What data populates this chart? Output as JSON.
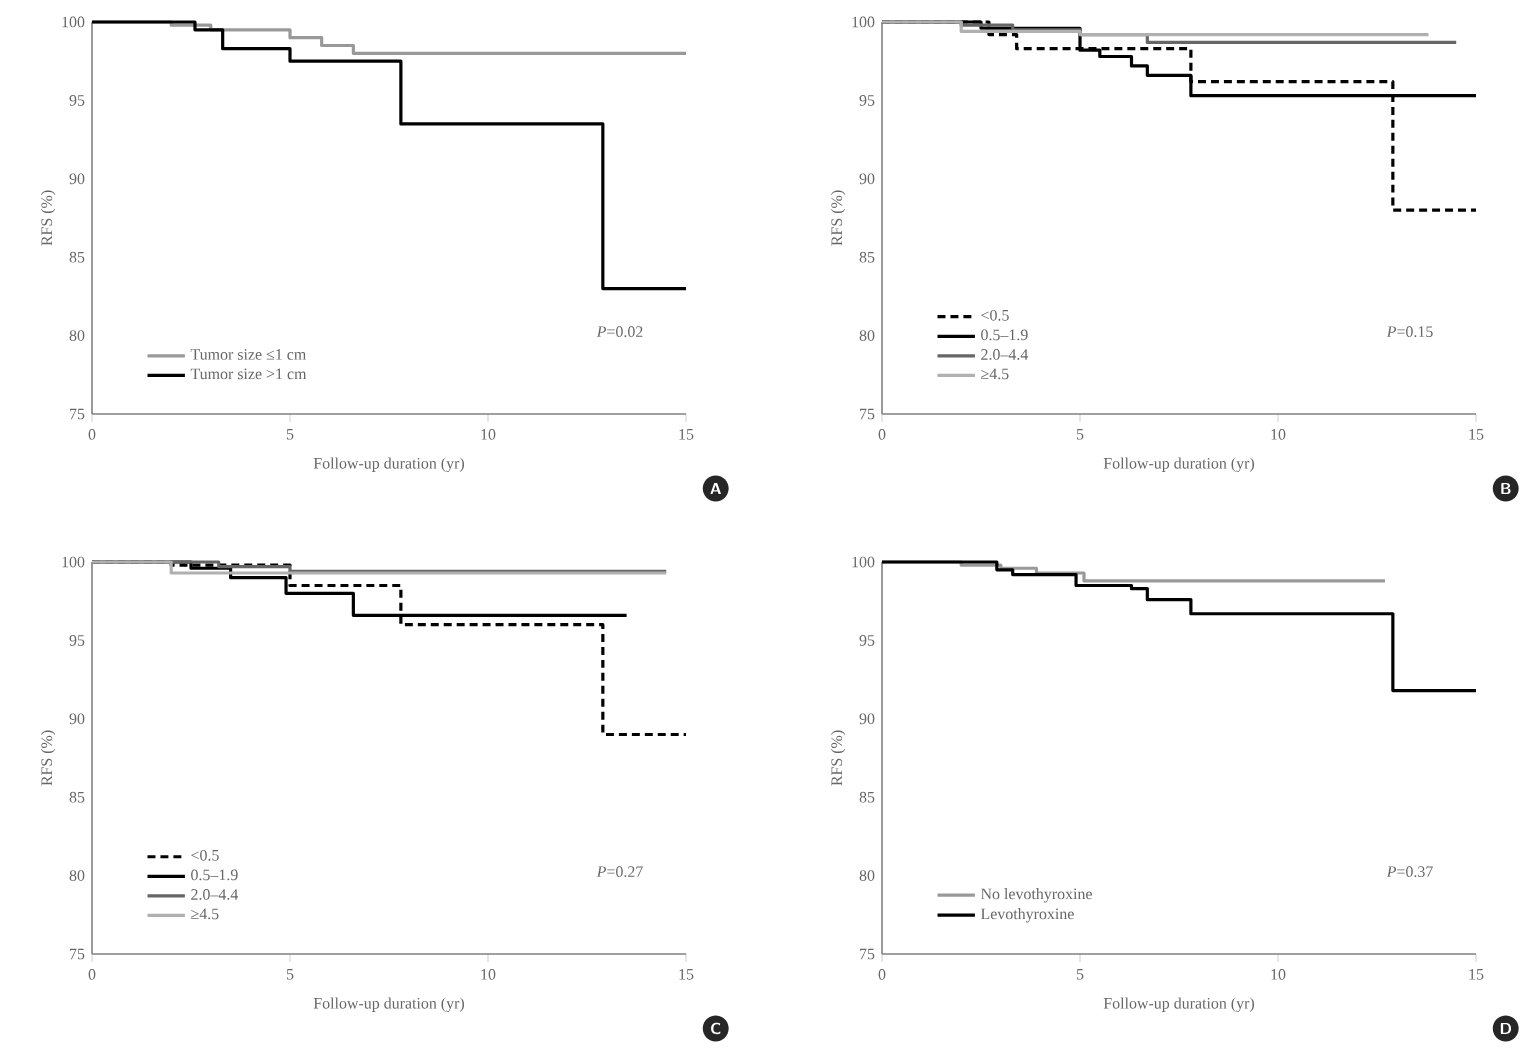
{
  "chart_data": [
    {
      "type": "step",
      "xlabel": "Follow-up duration (yr)",
      "ylabel": "RFS (%)",
      "xlim": [
        0,
        15
      ],
      "xticks": [
        0,
        5,
        10,
        15
      ],
      "ylim": [
        75,
        100
      ],
      "yticks": [
        75,
        80,
        85,
        90,
        95,
        100
      ],
      "legend": "bottom left",
      "annotations": [
        "*P*=0.02",
        "A"
      ],
      "series": [
        {
          "name": "Tumor size ≤1 cm",
          "color": "#999999",
          "x": [
            0,
            2,
            3,
            5,
            5.8,
            6.6,
            15
          ],
          "values": [
            100,
            99.8,
            99.5,
            99.0,
            98.5,
            98.0,
            98.0
          ]
        },
        {
          "name": "Tumor size >1 cm",
          "color": "#000000",
          "x": [
            0,
            2.6,
            3.3,
            5.0,
            7.8,
            12.9,
            15
          ],
          "values": [
            100,
            99.5,
            98.3,
            97.5,
            93.5,
            83.0,
            83.0
          ]
        }
      ]
    },
    {
      "type": "step",
      "xlabel": "Follow-up duration (yr)",
      "ylabel": "RFS (%)",
      "xlim": [
        0,
        15
      ],
      "xticks": [
        0,
        5,
        10,
        15
      ],
      "ylim": [
        75,
        100
      ],
      "yticks": [
        75,
        80,
        85,
        90,
        95,
        100
      ],
      "legend": "bottom left",
      "annotations": [
        "*P*=0.15",
        "B"
      ],
      "series": [
        {
          "name": "<0.5",
          "color": "#000000",
          "line_style": "dashed",
          "x": [
            0,
            2.7,
            3.4,
            7.8,
            12.9,
            15
          ],
          "values": [
            100,
            99.2,
            98.3,
            96.2,
            88.0,
            88.0
          ]
        },
        {
          "name": "0.5–1.9",
          "color": "#000000",
          "x": [
            0,
            2.5,
            5,
            5.5,
            6.3,
            6.7,
            7.8,
            15
          ],
          "values": [
            100,
            99.6,
            98.2,
            97.8,
            97.2,
            96.6,
            95.3,
            95.3
          ]
        },
        {
          "name": "2.0–4.4",
          "color": "#666666",
          "x": [
            0,
            2.0,
            3.3,
            5,
            6.7,
            14.5
          ],
          "values": [
            100,
            99.8,
            99.5,
            99.2,
            98.7,
            98.7
          ]
        },
        {
          "name": "≥4.5",
          "color": "#b0b0b0",
          "x": [
            0,
            2.0,
            5,
            13.8
          ],
          "values": [
            100,
            99.4,
            99.2,
            99.2
          ]
        }
      ]
    },
    {
      "type": "step",
      "xlabel": "Follow-up duration (yr)",
      "ylabel": "RFS (%)",
      "xlim": [
        0,
        15
      ],
      "xticks": [
        0,
        5,
        10,
        15
      ],
      "ylim": [
        75,
        100
      ],
      "yticks": [
        75,
        80,
        85,
        90,
        95,
        100
      ],
      "legend": "bottom left",
      "annotations": [
        "*P*=0.27",
        "C"
      ],
      "series": [
        {
          "name": "<0.5",
          "color": "#000000",
          "line_style": "dashed",
          "x": [
            0,
            2,
            5,
            7.8,
            12.9,
            15
          ],
          "values": [
            100,
            99.8,
            98.5,
            96.0,
            89.0,
            89.0
          ]
        },
        {
          "name": "0.5–1.9",
          "color": "#000000",
          "x": [
            0,
            2.5,
            3.5,
            4.9,
            6.6,
            13.5
          ],
          "values": [
            100,
            99.6,
            99.0,
            98.0,
            96.6,
            96.6
          ]
        },
        {
          "name": "2.0–4.4",
          "color": "#666666",
          "x": [
            0,
            3.2,
            5,
            14.5
          ],
          "values": [
            100,
            99.7,
            99.4,
            99.4
          ]
        },
        {
          "name": "≥4.5",
          "color": "#b0b0b0",
          "x": [
            0,
            2,
            14.5
          ],
          "values": [
            100,
            99.3,
            99.3
          ]
        }
      ]
    },
    {
      "type": "step",
      "xlabel": "Follow-up duration (yr)",
      "ylabel": "RFS (%)",
      "xlim": [
        0,
        15
      ],
      "xticks": [
        0,
        5,
        10,
        15
      ],
      "ylim": [
        75,
        100
      ],
      "yticks": [
        75,
        80,
        85,
        90,
        95,
        100
      ],
      "legend": "bottom left",
      "annotations": [
        "*P*=0.37",
        "D"
      ],
      "series": [
        {
          "name": "No levothyroxine",
          "color": "#999999",
          "x": [
            0,
            2,
            3,
            3.9,
            5.1,
            12.7
          ],
          "values": [
            100,
            99.8,
            99.6,
            99.3,
            98.8,
            98.8
          ]
        },
        {
          "name": "Levothyroxine",
          "color": "#000000",
          "x": [
            0,
            2.9,
            3.3,
            4.9,
            6.3,
            6.7,
            7.8,
            12.9,
            15
          ],
          "values": [
            100,
            99.5,
            99.2,
            98.5,
            98.3,
            97.6,
            96.7,
            91.8,
            91.8
          ]
        }
      ]
    }
  ]
}
